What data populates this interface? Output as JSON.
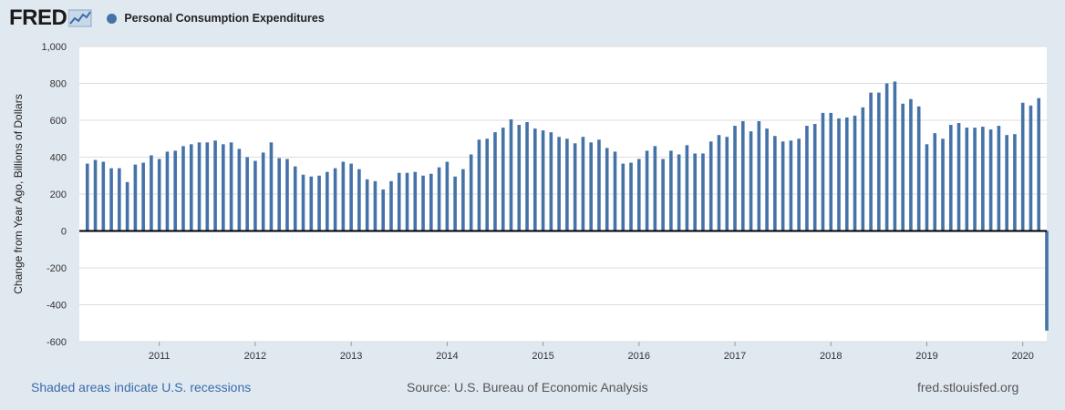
{
  "header": {
    "logo_text": "FRED",
    "series_label": "Personal Consumption Expenditures"
  },
  "colors": {
    "series": "#4572a7",
    "background": "#e1e9f0",
    "plot_background": "#ffffff",
    "link": "#3a6bab"
  },
  "chart_data": {
    "type": "bar",
    "ylabel": "Change from Year Ago, Billions of Dollars",
    "ylim": [
      -600,
      1000
    ],
    "yticks": [
      "1,000",
      "800",
      "600",
      "400",
      "200",
      "0",
      "-200",
      "-400",
      "-600"
    ],
    "xticks": [
      "2011",
      "2012",
      "2013",
      "2014",
      "2015",
      "2016",
      "2017",
      "2018",
      "2019",
      "2020"
    ],
    "x_start": "2010-03",
    "x_end": "2020-04",
    "grid": true,
    "series": [
      {
        "name": "Personal Consumption Expenditures",
        "x": [
          "2010-04",
          "2010-05",
          "2010-06",
          "2010-07",
          "2010-08",
          "2010-09",
          "2010-10",
          "2010-11",
          "2010-12",
          "2011-01",
          "2011-02",
          "2011-03",
          "2011-04",
          "2011-05",
          "2011-06",
          "2011-07",
          "2011-08",
          "2011-09",
          "2011-10",
          "2011-11",
          "2011-12",
          "2012-01",
          "2012-02",
          "2012-03",
          "2012-04",
          "2012-05",
          "2012-06",
          "2012-07",
          "2012-08",
          "2012-09",
          "2012-10",
          "2012-11",
          "2012-12",
          "2013-01",
          "2013-02",
          "2013-03",
          "2013-04",
          "2013-05",
          "2013-06",
          "2013-07",
          "2013-08",
          "2013-09",
          "2013-10",
          "2013-11",
          "2013-12",
          "2014-01",
          "2014-02",
          "2014-03",
          "2014-04",
          "2014-05",
          "2014-06",
          "2014-07",
          "2014-08",
          "2014-09",
          "2014-10",
          "2014-11",
          "2014-12",
          "2015-01",
          "2015-02",
          "2015-03",
          "2015-04",
          "2015-05",
          "2015-06",
          "2015-07",
          "2015-08",
          "2015-09",
          "2015-10",
          "2015-11",
          "2015-12",
          "2016-01",
          "2016-02",
          "2016-03",
          "2016-04",
          "2016-05",
          "2016-06",
          "2016-07",
          "2016-08",
          "2016-09",
          "2016-10",
          "2016-11",
          "2016-12",
          "2017-01",
          "2017-02",
          "2017-03",
          "2017-04",
          "2017-05",
          "2017-06",
          "2017-07",
          "2017-08",
          "2017-09",
          "2017-10",
          "2017-11",
          "2017-12",
          "2018-01",
          "2018-02",
          "2018-03",
          "2018-04",
          "2018-05",
          "2018-06",
          "2018-07",
          "2018-08",
          "2018-09",
          "2018-10",
          "2018-11",
          "2018-12",
          "2019-01",
          "2019-02",
          "2019-03",
          "2019-04",
          "2019-05",
          "2019-06",
          "2019-07",
          "2019-08",
          "2019-09",
          "2019-10",
          "2019-11",
          "2019-12",
          "2020-01",
          "2020-02",
          "2020-03",
          "2020-04"
        ],
        "values": [
          365,
          385,
          375,
          340,
          340,
          265,
          360,
          370,
          410,
          390,
          430,
          435,
          460,
          470,
          480,
          480,
          490,
          470,
          480,
          445,
          400,
          380,
          425,
          480,
          395,
          390,
          350,
          305,
          295,
          300,
          320,
          340,
          375,
          365,
          335,
          280,
          270,
          225,
          270,
          315,
          315,
          320,
          300,
          310,
          345,
          375,
          295,
          335,
          415,
          495,
          500,
          535,
          560,
          605,
          575,
          590,
          555,
          545,
          535,
          510,
          500,
          475,
          510,
          480,
          495,
          450,
          430,
          365,
          370,
          390,
          435,
          460,
          390,
          435,
          415,
          465,
          420,
          420,
          485,
          520,
          510,
          570,
          595,
          540,
          595,
          555,
          515,
          485,
          490,
          500,
          570,
          580,
          640,
          640,
          610,
          615,
          625,
          670,
          750,
          750,
          800,
          810,
          690,
          715,
          675,
          470,
          530,
          500,
          575,
          585,
          560,
          560,
          565,
          550,
          570,
          520,
          525,
          695,
          680,
          720,
          -540
        ]
      }
    ]
  },
  "footer": {
    "recessions_note": "Shaded areas indicate U.S. recessions",
    "source": "Source: U.S. Bureau of Economic Analysis",
    "site": "fred.stlouisfed.org"
  }
}
